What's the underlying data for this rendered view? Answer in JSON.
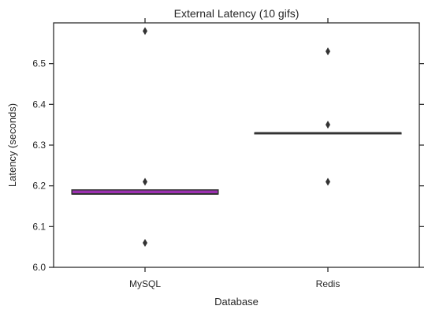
{
  "chart_data": {
    "type": "box",
    "title": "External Latency (10 gifs)",
    "xlabel": "Database",
    "ylabel": "Latency (seconds)",
    "categories": [
      "MySQL",
      "Redis"
    ],
    "ylim": [
      6.0,
      6.6
    ],
    "yticks": [
      "6.0",
      "6.1",
      "6.2",
      "6.3",
      "6.4",
      "6.5"
    ],
    "boxes": [
      {
        "name": "MySQL",
        "q1": 6.18,
        "median": 6.18,
        "q3": 6.19,
        "whisker_low": 6.18,
        "whisker_high": 6.19,
        "outliers": [
          6.58,
          6.21,
          6.06
        ],
        "fill_color": "#9b30b0"
      },
      {
        "name": "Redis",
        "q1": 6.33,
        "median": 6.33,
        "q3": 6.33,
        "whisker_low": 6.33,
        "whisker_high": 6.33,
        "outliers": [
          6.53,
          6.35,
          6.21
        ],
        "fill_color": "#d65f9a"
      }
    ],
    "grid": false,
    "colors": {
      "axis": "#262626",
      "median": "#333333",
      "outlier": "#333333"
    }
  }
}
